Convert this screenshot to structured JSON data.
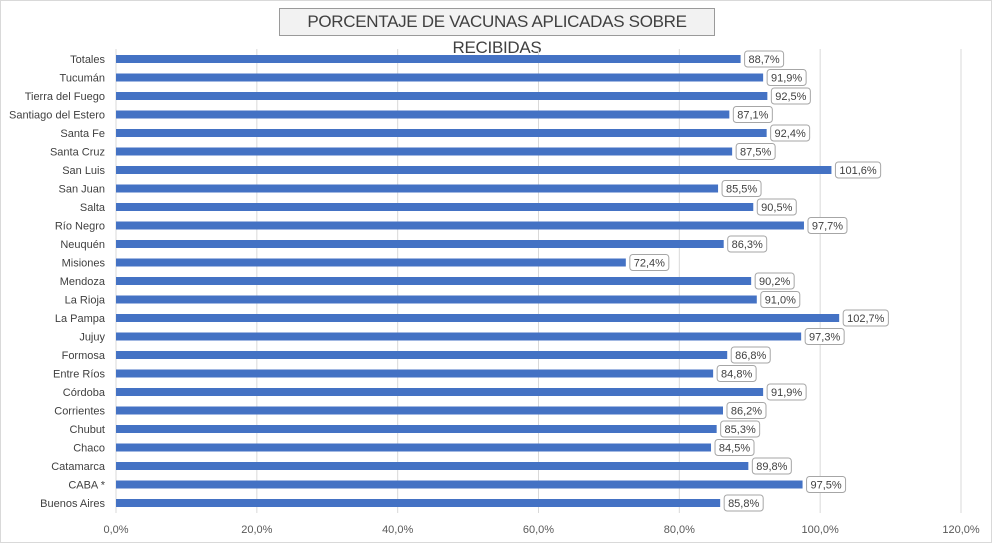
{
  "chart_data": {
    "type": "bar",
    "orientation": "horizontal",
    "title": "PORCENTAJE DE VACUNAS APLICADAS SOBRE RECIBIDAS",
    "categories": [
      "Totales",
      "Tucumán",
      "Tierra del Fuego",
      "Santiago del Estero",
      "Santa Fe",
      "Santa Cruz",
      "San Luis",
      "San Juan",
      "Salta",
      "Río Negro",
      "Neuquén",
      "Misiones",
      "Mendoza",
      "La Rioja",
      "La Pampa",
      "Jujuy",
      "Formosa",
      "Entre Ríos",
      "Córdoba",
      "Corrientes",
      "Chubut",
      "Chaco",
      "Catamarca",
      "CABA *",
      "Buenos Aires"
    ],
    "values": [
      88.7,
      91.9,
      92.5,
      87.1,
      92.4,
      87.5,
      101.6,
      85.5,
      90.5,
      97.7,
      86.3,
      72.4,
      90.2,
      91.0,
      102.7,
      97.3,
      86.8,
      84.8,
      91.9,
      86.2,
      85.3,
      84.5,
      89.8,
      97.5,
      85.8
    ],
    "data_labels": [
      "88,7%",
      "91,9%",
      "92,5%",
      "87,1%",
      "92,4%",
      "87,5%",
      "101,6%",
      "85,5%",
      "90,5%",
      "97,7%",
      "86,3%",
      "72,4%",
      "90,2%",
      "91,0%",
      "102,7%",
      "97,3%",
      "86,8%",
      "84,8%",
      "91,9%",
      "86,2%",
      "85,3%",
      "84,5%",
      "89,8%",
      "97,5%",
      "85,8%"
    ],
    "xlim": [
      0,
      120
    ],
    "x_ticks": [
      0,
      20,
      40,
      60,
      80,
      100,
      120
    ],
    "x_tick_labels": [
      "0,0%",
      "20,0%",
      "40,0%",
      "60,0%",
      "80,0%",
      "100,0%",
      "120,0%"
    ],
    "grid": "vertical",
    "legend": "none",
    "bar_color": "#4472c4",
    "grid_color": "#d9d9d9"
  }
}
